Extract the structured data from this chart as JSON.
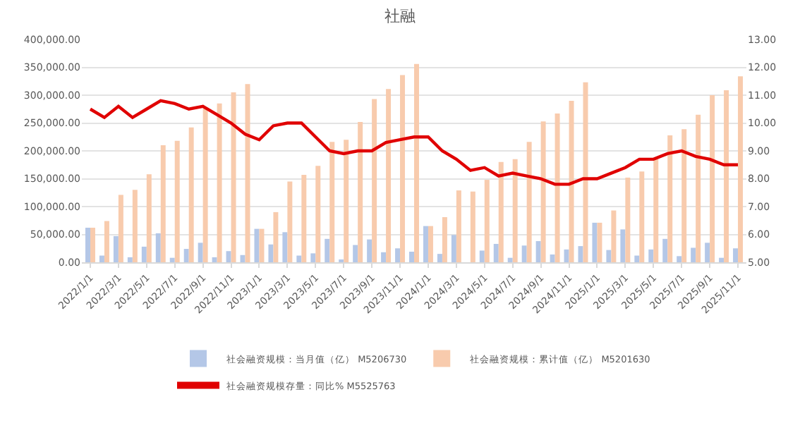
{
  "chart_data": {
    "type": "bar",
    "title": "社融",
    "categories": [
      "2022/1/1",
      null,
      "2022/3/1",
      null,
      "2022/5/1",
      null,
      "2022/7/1",
      null,
      "2022/9/1",
      null,
      "2022/11/1",
      null,
      "2023/1/1",
      null,
      "2023/3/1",
      null,
      "2023/5/1",
      null,
      "2023/7/1",
      null,
      "2023/9/1",
      null,
      "2023/11/1",
      null,
      "2024/1/1",
      null,
      "2024/3/1",
      null,
      "2024/5/1",
      null,
      "2024/7/1",
      null,
      "2024/9/1",
      null,
      "2024/11/1",
      null,
      "2025/1/1",
      null,
      "2025/3/1",
      null,
      "2025/5/1",
      null,
      "2025/7/1",
      null,
      "2025/9/1",
      null,
      "2025/11/1"
    ],
    "series": [
      {
        "name": "社会融资规模：当月值（亿） M5206730",
        "color": "#b4c7e7",
        "values": [
          62000,
          12000,
          47000,
          9000,
          28000,
          52000,
          8000,
          24000,
          35000,
          9000,
          20000,
          13000,
          60000,
          32000,
          54000,
          12000,
          16000,
          42000,
          5000,
          31000,
          41000,
          18000,
          25000,
          19000,
          65000,
          15000,
          49000,
          null,
          21000,
          33000,
          8000,
          30000,
          38000,
          14000,
          23000,
          29000,
          71000,
          22000,
          59000,
          12000,
          23000,
          42000,
          11000,
          26000,
          35000,
          8000,
          25000
        ]
      },
      {
        "name": "社会融资规模：累计值（亿） M5201630",
        "color": "#f8cbad",
        "values": [
          62000,
          74000,
          121000,
          130000,
          158000,
          210000,
          218000,
          242000,
          276000,
          285000,
          305000,
          320000,
          60000,
          90000,
          145000,
          157000,
          173000,
          216000,
          220000,
          252000,
          293000,
          311000,
          336000,
          356000,
          65000,
          81000,
          129000,
          127000,
          148000,
          180000,
          185000,
          216000,
          253000,
          267000,
          290000,
          323000,
          71000,
          93000,
          152000,
          163000,
          185000,
          228000,
          239000,
          265000,
          300000,
          309000,
          334000
        ]
      },
      {
        "name": "社会融资规模存量：同比% M5525763",
        "type": "line",
        "axis": "y2",
        "color": "#e00000",
        "values": [
          10.5,
          10.2,
          10.6,
          10.2,
          10.5,
          10.8,
          10.7,
          10.5,
          10.6,
          10.3,
          10.0,
          9.6,
          9.4,
          9.9,
          10.0,
          10.0,
          9.5,
          9.0,
          8.9,
          9.0,
          9.0,
          9.3,
          9.4,
          9.5,
          9.5,
          9.0,
          8.7,
          8.3,
          8.4,
          8.1,
          8.2,
          8.1,
          8.0,
          7.8,
          7.8,
          8.0,
          8.0,
          8.2,
          8.4,
          8.7,
          8.7,
          8.9,
          9.0,
          8.8,
          8.7,
          8.5,
          8.5
        ]
      }
    ],
    "ylim": [
      0,
      400000
    ],
    "yticks": [
      {
        "value": 0,
        "label": "0.00"
      },
      {
        "value": 50000,
        "label": "50,000.00"
      },
      {
        "value": 100000,
        "label": "100,000.00"
      },
      {
        "value": 150000,
        "label": "150,000.00"
      },
      {
        "value": 200000,
        "label": "200,000.00"
      },
      {
        "value": 250000,
        "label": "250,000.00"
      },
      {
        "value": 300000,
        "label": "300,000.00"
      },
      {
        "value": 350000,
        "label": "350,000.00"
      },
      {
        "value": 400000,
        "label": "400,000.00"
      }
    ],
    "y2lim": [
      5,
      13
    ],
    "y2ticks": [
      {
        "value": 5,
        "label": "5.00"
      },
      {
        "value": 6,
        "label": "6.00"
      },
      {
        "value": 7,
        "label": "7.00"
      },
      {
        "value": 8,
        "label": "8.00"
      },
      {
        "value": 9,
        "label": "9.00"
      },
      {
        "value": 10,
        "label": "10.00"
      },
      {
        "value": 11,
        "label": "11.00"
      },
      {
        "value": 12,
        "label": "12.00"
      },
      {
        "value": 13,
        "label": "13.00"
      }
    ],
    "grid": "y",
    "legend": "bottom",
    "marker": "none",
    "line_style": "solid"
  }
}
